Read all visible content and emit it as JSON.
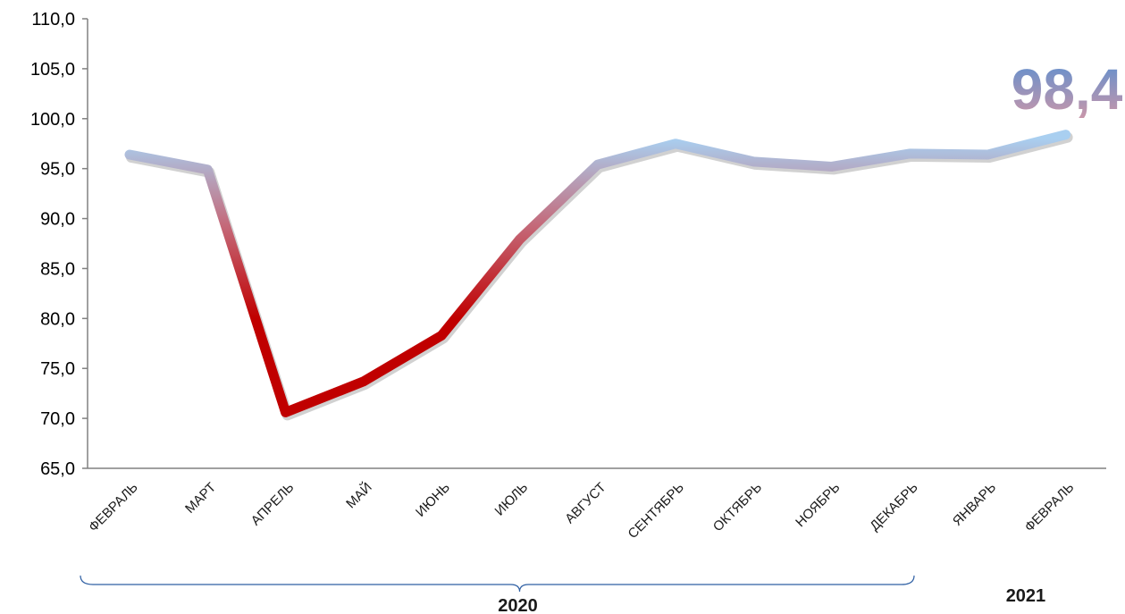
{
  "chart_data": {
    "type": "line",
    "categories": [
      "ФЕВРАЛЬ",
      "МАРТ",
      "АПРЕЛЬ",
      "МАЙ",
      "ИЮНЬ",
      "ИЮЛЬ",
      "АВГУСТ",
      "СЕНТЯБРЬ",
      "ОКТЯБРЬ",
      "НОЯБРЬ",
      "ДЕКАБРЬ",
      "ЯНВАРЬ",
      "ФЕВРАЛЬ"
    ],
    "series": [
      {
        "values": [
          96.4,
          94.9,
          70.6,
          73.7,
          78.3,
          87.9,
          95.4,
          97.5,
          95.7,
          95.2,
          96.5,
          96.4,
          98.4
        ]
      }
    ],
    "ylim": [
      65.0,
      110.0
    ],
    "yticks": [
      "65,0",
      "70,0",
      "75,0",
      "80,0",
      "85,0",
      "90,0",
      "95,0",
      "100,0",
      "105,0",
      "110,0"
    ],
    "grid": false,
    "year_groups": [
      {
        "label": "2020",
        "from": 0,
        "to": 10,
        "bracket": true
      },
      {
        "label": "2021",
        "from": 11,
        "to": 12,
        "bracket": false
      }
    ],
    "highlight_label": "98,4",
    "colors": {
      "high": "#a9cff0",
      "low": "#c00000",
      "highlight_top": "#5b8fd0",
      "highlight_bottom": "#cf97a8",
      "axis": "#808080",
      "bracket": "#2e5fa3"
    }
  }
}
